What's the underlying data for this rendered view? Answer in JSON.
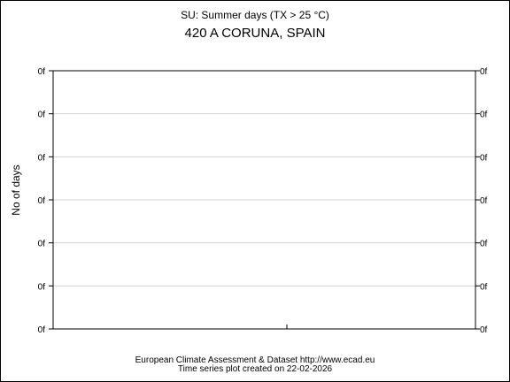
{
  "chart_data": {
    "type": "line",
    "title": "SU: Summer days (TX > 25 °C)",
    "subtitle": "420 A CORUNA, SPAIN",
    "ylabel": "No of days",
    "xlabel": "",
    "ytick_labels": [
      "0f",
      "0f",
      "0f",
      "0f",
      "0f",
      "0f",
      "0f"
    ],
    "x": [],
    "series": [],
    "grid": true
  },
  "footer": {
    "line1": "European Climate Assessment & Dataset  http://www.ecad.eu",
    "line2": "Time series plot created on 22-02-2026"
  }
}
